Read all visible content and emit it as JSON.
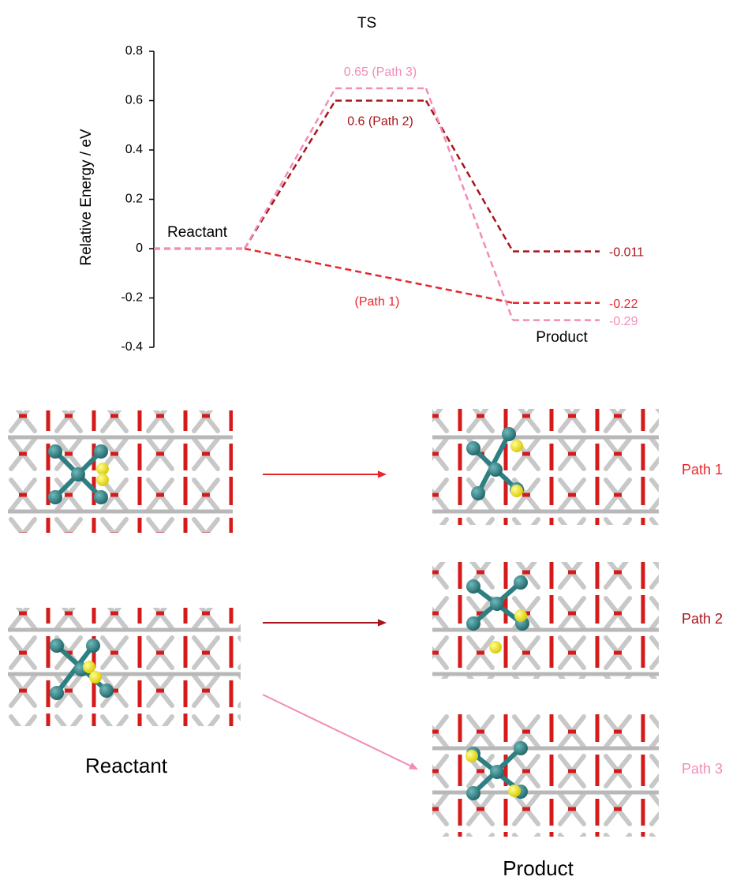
{
  "chart_data": {
    "type": "energy-profile",
    "ylabel": "Relative Energy / eV",
    "categories": [
      "Reactant",
      "TS",
      "Product"
    ],
    "ylim": [
      -0.4,
      0.8
    ],
    "yticks": [
      0.8,
      0.6,
      0.4,
      0.2,
      0,
      -0.2,
      -0.4
    ],
    "series": [
      {
        "name": "Path 1",
        "color": "#e8262a",
        "values": [
          0,
          null,
          -0.22
        ],
        "value_labels": [
          null,
          null,
          "-0.22"
        ]
      },
      {
        "name": "Path 2",
        "color": "#a8141b",
        "values": [
          0,
          0.6,
          -0.011
        ],
        "value_labels": [
          null,
          "0.6 (Path 2)",
          "-0.011"
        ]
      },
      {
        "name": "Path 3",
        "color": "#f28cb8",
        "values": [
          0,
          0.65,
          -0.29
        ],
        "value_labels": [
          null,
          "0.65 (Path 3)",
          "-0.29"
        ]
      }
    ],
    "annotations": [
      "(Path 1)"
    ]
  },
  "structures": {
    "reactant_label": "Reactant",
    "product_label": "Product"
  }
}
